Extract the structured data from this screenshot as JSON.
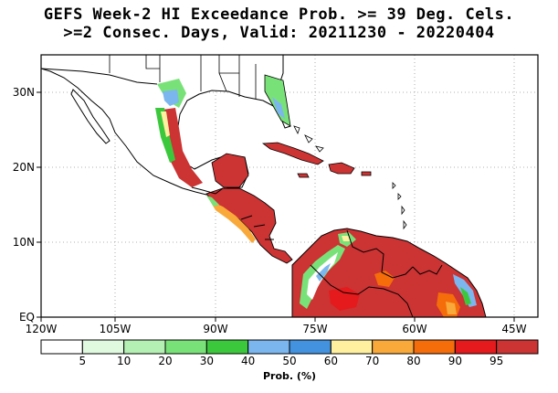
{
  "title": {
    "line1": "GEFS Week-2 HI Exceedance Prob. >= 39 Deg. Cels.",
    "line2": ">=2 Consec. Days, Valid: 20211230 - 20220404"
  },
  "map": {
    "lat_labels": [
      "30N",
      "20N",
      "10N",
      "EQ"
    ],
    "lon_labels": [
      "120W",
      "105W",
      "90W",
      "75W",
      "60W",
      "45W"
    ],
    "colors": {
      "land_white": "#ffffff",
      "ocean": "#ffffff",
      "high_prob": "#cc3333",
      "red": "#e41a1c",
      "orange": "#f46d0a",
      "light_orange": "#f9a93a",
      "yellow": "#fff0a0",
      "blue": "#4292e0",
      "light_blue": "#7cb6ee",
      "green": "#3cc83c",
      "light_green": "#78e278",
      "pale_green": "#b4f0b4",
      "very_pale_green": "#e0fae0"
    }
  },
  "colorbar": {
    "colors": [
      "#ffffff",
      "#e0fae0",
      "#b4f0b4",
      "#78e278",
      "#3cc83c",
      "#7cb6ee",
      "#4292e0",
      "#fff0a0",
      "#f9a93a",
      "#f46d0a",
      "#e41a1c",
      "#cc3333"
    ],
    "labels": [
      "5",
      "10",
      "20",
      "30",
      "40",
      "50",
      "60",
      "70",
      "80",
      "90",
      "95"
    ],
    "title": "Prob. (%)"
  }
}
